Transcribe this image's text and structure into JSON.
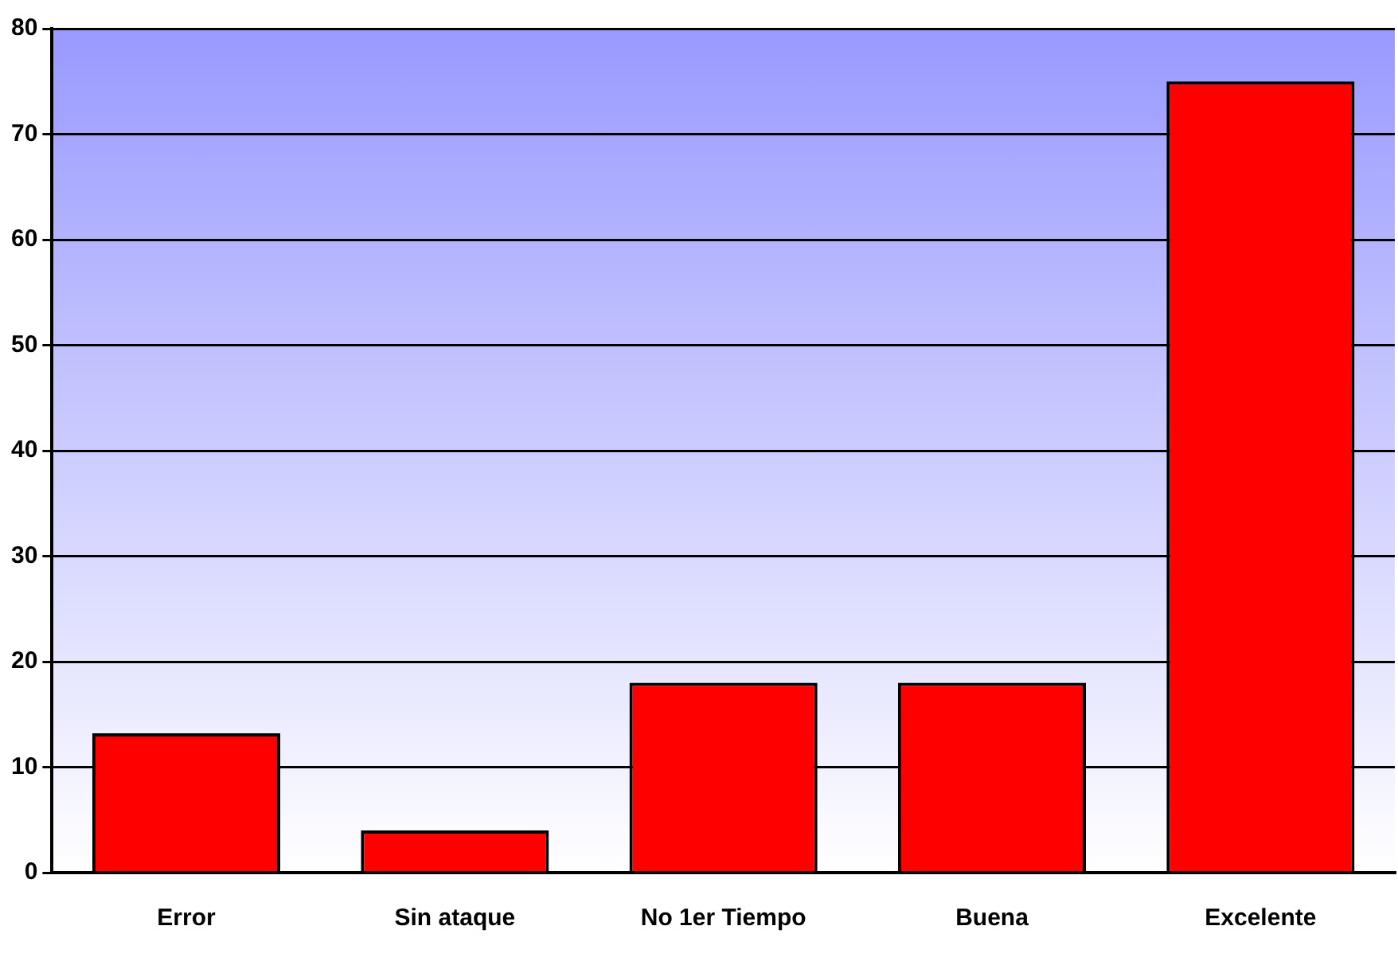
{
  "chart_data": {
    "type": "bar",
    "categories": [
      "Error",
      "Sin ataque",
      "No 1er Tiempo",
      "Buena",
      "Excelente"
    ],
    "values": [
      13.2,
      4,
      18,
      18,
      75
    ],
    "color": "#ff0000",
    "ylim": [
      0,
      80
    ],
    "yticks": [
      0,
      10,
      20,
      30,
      40,
      50,
      60,
      70,
      80
    ],
    "grid": "y"
  }
}
